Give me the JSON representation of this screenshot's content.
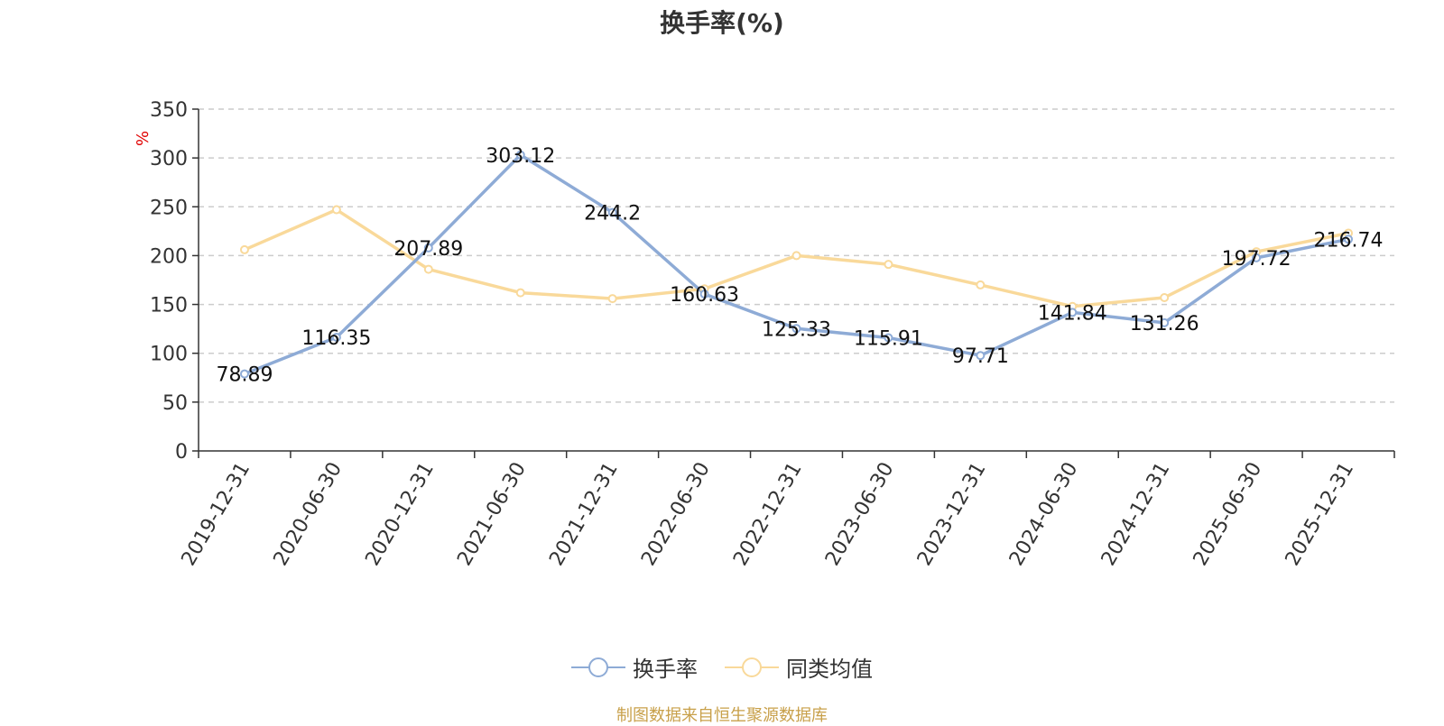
{
  "chart_data": {
    "type": "line",
    "title": "换手率(%)",
    "ylabel": "%",
    "xlabel": "",
    "categories": [
      "2019-12-31",
      "2020-06-30",
      "2020-12-31",
      "2021-06-30",
      "2021-12-31",
      "2022-06-30",
      "2022-12-31",
      "2023-06-30",
      "2023-12-31",
      "2024-06-30",
      "2024-12-31",
      "2025-06-30",
      "2025-12-31"
    ],
    "ylim": [
      0,
      350
    ],
    "yticks": [
      0,
      50,
      100,
      150,
      200,
      250,
      300,
      350
    ],
    "grid": true,
    "legend_position": "bottom",
    "series": [
      {
        "name": "换手率",
        "color": "#8eabd6",
        "values": [
          78.89,
          116.35,
          207.89,
          303.12,
          244.2,
          160.63,
          125.33,
          115.91,
          97.71,
          141.84,
          131.26,
          197.72,
          216.74
        ],
        "labels": [
          "78.89",
          "116.35",
          "207.89",
          "303.12",
          "244.2",
          "160.63",
          "125.33",
          "115.91",
          "97.71",
          "141.84",
          "131.26",
          "197.72",
          "216.74"
        ]
      },
      {
        "name": "同类均值",
        "color": "#f9d99a",
        "values": [
          206,
          247,
          186,
          162,
          156,
          166,
          200,
          191,
          170,
          148,
          157,
          204,
          223
        ]
      }
    ]
  },
  "source_note": "制图数据来自恒生聚源数据库"
}
